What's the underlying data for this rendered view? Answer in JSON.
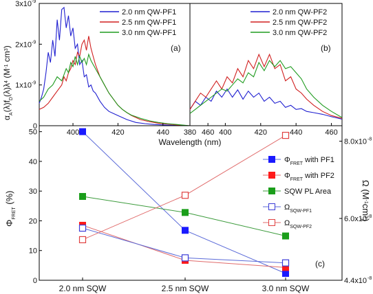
{
  "chart_data": [
    {
      "type": "line",
      "panel_label": "(a)",
      "xlim": [
        385,
        452
      ],
      "ylim": [
        0,
        3e-09
      ],
      "y_tick_labels": [
        "0",
        "1x10",
        "2x10",
        "3x10"
      ],
      "y_tick_exp": "-9",
      "x_tick_labels": [
        "400",
        "420",
        "440",
        "460"
      ],
      "x_ticks": [
        400,
        420,
        440,
        460
      ],
      "ylabel_parts": [
        "α",
        "A",
        "(λ)f",
        "D",
        "(λ)λ",
        "4",
        " (M",
        "-1",
        " cm",
        "3",
        ")"
      ],
      "series": [
        {
          "name": "2.0 nm QW-PF1",
          "color": "#1f1fd0",
          "x": [
            385,
            386,
            387,
            388,
            389,
            390,
            391,
            392,
            393,
            394,
            395,
            396,
            397,
            398,
            399,
            400,
            401,
            402,
            403,
            404,
            405,
            406,
            407,
            408,
            409,
            410,
            412,
            414,
            416,
            418,
            420,
            424,
            428,
            432,
            436,
            440,
            444,
            448,
            452
          ],
          "y": [
            5.5e-10,
            7e-10,
            9e-10,
            1.3e-09,
            1.8e-09,
            1.55e-09,
            2.1e-09,
            1.7e-09,
            2.6e-09,
            2.1e-09,
            2.85e-09,
            2.9e-09,
            2.4e-09,
            2.7e-09,
            2.2e-09,
            2.4e-09,
            1.9e-09,
            2e-09,
            1.5e-09,
            1.6e-09,
            1.2e-09,
            1.25e-09,
            9.5e-10,
            1e-09,
            8.5e-10,
            8e-10,
            6e-10,
            4.5e-10,
            3.5e-10,
            3e-10,
            2.5e-10,
            1.5e-10,
            8e-11,
            5e-11,
            3e-11,
            2e-11,
            1e-11,
            5e-12,
            0
          ]
        },
        {
          "name": "2.5 nm QW-PF1",
          "color": "#d01f1f",
          "x": [
            385,
            387,
            389,
            391,
            393,
            395,
            396,
            397,
            398,
            399,
            400,
            401,
            402,
            403,
            404,
            405,
            406,
            407,
            408,
            409,
            410,
            412,
            414,
            416,
            418,
            420,
            422,
            424,
            426,
            428,
            430,
            434,
            438,
            442,
            446,
            452
          ],
          "y": [
            4e-10,
            4.5e-10,
            5.5e-10,
            7e-10,
            8.5e-10,
            1e-09,
            1.2e-09,
            1.1e-09,
            1.3e-09,
            1.4e-09,
            1.6e-09,
            1.5e-09,
            1.8e-09,
            1.7e-09,
            2e-09,
            2.1e-09,
            1.85e-09,
            2.2e-09,
            1.9e-09,
            1.7e-09,
            1.5e-09,
            1.2e-09,
            1e-09,
            8e-10,
            6.5e-10,
            5e-10,
            4e-10,
            3.2e-10,
            2.5e-10,
            2e-10,
            1.5e-10,
            1e-10,
            6e-11,
            4e-11,
            2e-11,
            0
          ]
        },
        {
          "name": "3.0 nm QW-PF1",
          "color": "#1f9b1f",
          "x": [
            385,
            387,
            389,
            391,
            393,
            395,
            397,
            398,
            399,
            400,
            401,
            402,
            403,
            404,
            405,
            406,
            407,
            408,
            409,
            410,
            411,
            412,
            414,
            416,
            418,
            420,
            422,
            424,
            426,
            428,
            430,
            434,
            438,
            442,
            446,
            452
          ],
          "y": [
            6e-10,
            7e-10,
            9e-10,
            1e-09,
            1.2e-09,
            1.1e-09,
            1.4e-09,
            1.3e-09,
            1.55e-09,
            1.45e-09,
            1.7e-09,
            1.5e-09,
            1.7e-09,
            1.55e-09,
            1.65e-09,
            1.5e-09,
            1.75e-09,
            1.6e-09,
            1.5e-09,
            1.4e-09,
            1.3e-09,
            1.2e-09,
            1e-09,
            8e-10,
            6.5e-10,
            5e-10,
            4e-10,
            3.2e-10,
            2.6e-10,
            2.2e-10,
            1.8e-10,
            1.2e-10,
            8e-11,
            5e-11,
            3e-11,
            0
          ]
        }
      ]
    },
    {
      "type": "line",
      "panel_label": "(b)",
      "xlim": [
        380,
        466
      ],
      "ylim": [
        0,
        3e-09
      ],
      "x_tick_labels": [
        "380",
        "400",
        "420",
        "440",
        "460"
      ],
      "x_ticks": [
        380,
        400,
        420,
        440,
        460
      ],
      "xlabel": "Wavelength (nm)",
      "series": [
        {
          "name": "2.0 nm QW-PF2",
          "color": "#1f1fd0",
          "x": [
            380,
            383,
            386,
            389,
            392,
            395,
            398,
            401,
            404,
            407,
            410,
            413,
            416,
            419,
            422,
            425,
            428,
            431,
            434,
            437,
            440,
            443,
            446,
            450,
            455,
            460,
            466
          ],
          "y": [
            4e-10,
            6e-10,
            5e-10,
            7e-10,
            6e-10,
            8.5e-10,
            7e-10,
            9e-10,
            7e-10,
            8.8e-10,
            6.5e-10,
            8.5e-10,
            7e-10,
            8e-10,
            6e-10,
            7e-10,
            5.5e-10,
            6e-10,
            4.5e-10,
            5e-10,
            4e-10,
            4.2e-10,
            3.5e-10,
            3.2e-10,
            2.8e-10,
            2.2e-10,
            1.6e-10
          ]
        },
        {
          "name": "2.5 nm QW-PF2",
          "color": "#d01f1f",
          "x": [
            380,
            383,
            386,
            389,
            392,
            395,
            398,
            401,
            404,
            407,
            410,
            413,
            416,
            419,
            422,
            425,
            428,
            431,
            434,
            437,
            440,
            443,
            446,
            450,
            455,
            460,
            466
          ],
          "y": [
            4e-10,
            6e-10,
            8e-10,
            7e-10,
            9e-10,
            1.1e-09,
            9e-10,
            1.2e-09,
            1.05e-09,
            1.4e-09,
            1.2e-09,
            1.6e-09,
            1.4e-09,
            1.75e-09,
            1.45e-09,
            1.75e-09,
            1.4e-09,
            1.5e-09,
            1.1e-09,
            1.2e-09,
            9e-10,
            8e-10,
            6.5e-10,
            5e-10,
            3.5e-10,
            2.5e-10,
            1.8e-10
          ]
        },
        {
          "name": "3.0 nm QW-PF2",
          "color": "#1f9b1f",
          "x": [
            380,
            383,
            386,
            389,
            392,
            395,
            398,
            401,
            404,
            407,
            410,
            413,
            416,
            419,
            422,
            425,
            428,
            431,
            434,
            437,
            440,
            443,
            446,
            450,
            455,
            460,
            466
          ],
          "y": [
            3e-10,
            4e-10,
            5e-10,
            6e-10,
            7e-10,
            8e-10,
            9e-10,
            8.5e-10,
            1e-09,
            1.15e-09,
            1.05e-09,
            1.3e-09,
            1.2e-09,
            1.55e-09,
            1.35e-09,
            1.6e-09,
            1.45e-09,
            1.6e-09,
            1.4e-09,
            1.45e-09,
            1.3e-09,
            1.15e-09,
            9e-10,
            7e-10,
            5e-10,
            3.5e-10,
            2e-10
          ]
        }
      ]
    },
    {
      "type": "line",
      "panel_label": "(c)",
      "categories": [
        "2.0 nm SQW",
        "2.5 nm SQW",
        "3.0 nm SQW"
      ],
      "ylim": [
        0,
        52
      ],
      "y_ticks": [
        0,
        10,
        20,
        30,
        40,
        50
      ],
      "ylim_right": [
        4.4e-08,
        8.4e-08
      ],
      "y_right_tick_labels": [
        "4.4x10",
        "6.0x10",
        "8.0x10"
      ],
      "y_right_ticks": [
        4.4e-08,
        6e-08,
        8e-08
      ],
      "y_right_tick_exp": "-8",
      "ylabel_parts": [
        "Φ",
        "FRET",
        " (%)"
      ],
      "ylabel_right_parts": [
        "Ω (M",
        "-1",
        "cm",
        "3",
        ")"
      ],
      "series": [
        {
          "symbol": "Φ",
          "sub": "FRET",
          "suffix": " with PF1",
          "axis": "left",
          "marker": "filled",
          "color": "#1a1aff",
          "line_color": "#5a6ad8",
          "values": [
            50,
            16.8,
            2.3
          ]
        },
        {
          "symbol": "Φ",
          "sub": "FRET",
          "suffix": " with PF2",
          "axis": "left",
          "marker": "filled",
          "color": "#ff1a1a",
          "line_color": "#e06a6a",
          "values": [
            18.5,
            6.7,
            4.3
          ]
        },
        {
          "name": "SQW PL Area",
          "axis": "left",
          "marker": "filled",
          "color": "#1a9e1a",
          "line_color": "#3a9a3a",
          "values": [
            28.2,
            22.8,
            14.9
          ]
        },
        {
          "symbol": "Ω",
          "sub": "SQW-PF1",
          "suffix": "",
          "axis": "right",
          "marker": "open",
          "color": "#3a3ad8",
          "line_color": "#5a6ad8",
          "values": [
            5.75e-08,
            4.98e-08,
            4.85e-08
          ]
        },
        {
          "symbol": "Ω",
          "sub": "SQW-PF2",
          "suffix": "",
          "axis": "right",
          "marker": "open",
          "color": "#e04040",
          "line_color": "#e06a6a",
          "values": [
            5.45e-08,
            6.6e-08,
            8.15e-08
          ]
        }
      ]
    }
  ]
}
